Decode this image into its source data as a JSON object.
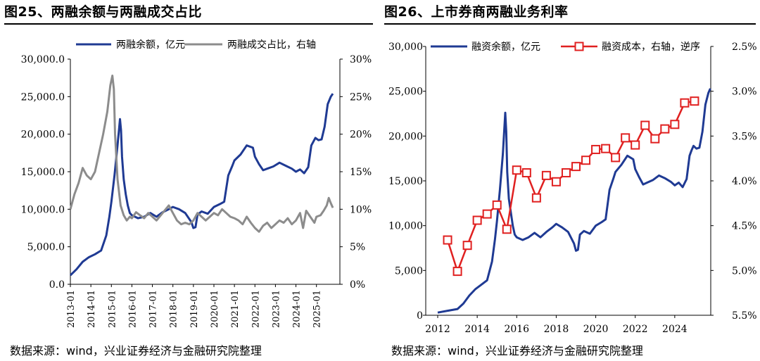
{
  "chart_data": [
    {
      "type": "line",
      "title": "图25、两融余额与两融成交占比",
      "source": "数据来源：wind，兴业证券经济与金融研究院整理",
      "x_tick_labels": [
        "2013-01",
        "2014-01",
        "2015-01",
        "2016-01",
        "2017-01",
        "2018-01",
        "2019-01",
        "2020-01",
        "2021-01",
        "2022-01",
        "2023-01",
        "2024-01",
        "2025-01"
      ],
      "y_left_ticks": [
        "0.0",
        "5,000.0",
        "10,000.0",
        "15,000.0",
        "20,000.0",
        "25,000.0",
        "30,000.0"
      ],
      "y_left_range": [
        0,
        30000
      ],
      "y_right_ticks": [
        "0%",
        "5%",
        "10%",
        "15%",
        "20%",
        "25%",
        "30%"
      ],
      "y_right_range": [
        0,
        30
      ],
      "series": [
        {
          "name": "两融余额，亿元",
          "axis": "left",
          "color": "#1f3a93",
          "x": [
            2013.0,
            2013.3,
            2013.6,
            2013.9,
            2014.2,
            2014.5,
            2014.75,
            2014.9,
            2015.0,
            2015.15,
            2015.3,
            2015.42,
            2015.47,
            2015.52,
            2015.6,
            2015.7,
            2015.8,
            2015.9,
            2016.0,
            2016.3,
            2016.6,
            2016.9,
            2017.2,
            2017.5,
            2017.8,
            2018.0,
            2018.3,
            2018.6,
            2018.9,
            2019.0,
            2019.1,
            2019.2,
            2019.4,
            2019.7,
            2020.0,
            2020.3,
            2020.5,
            2020.7,
            2020.9,
            2021.0,
            2021.3,
            2021.6,
            2021.9,
            2022.0,
            2022.2,
            2022.4,
            2022.6,
            2022.9,
            2023.2,
            2023.5,
            2023.8,
            2024.0,
            2024.2,
            2024.4,
            2024.6,
            2024.75,
            2024.85,
            2024.95,
            2025.1,
            2025.25,
            2025.4,
            2025.55,
            2025.7,
            2025.8
          ],
          "values": [
            1200,
            2000,
            3000,
            3600,
            4000,
            4500,
            6500,
            9000,
            11000,
            14500,
            18500,
            22000,
            20500,
            17000,
            14000,
            12000,
            10500,
            9500,
            9200,
            8800,
            9000,
            9500,
            9000,
            9600,
            10000,
            10300,
            10000,
            9500,
            8300,
            7500,
            7600,
            9300,
            9700,
            9400,
            10300,
            10700,
            11000,
            14500,
            15800,
            16500,
            17300,
            18500,
            18200,
            17000,
            16000,
            15200,
            15400,
            15700,
            16200,
            15800,
            15400,
            15000,
            15300,
            14800,
            15600,
            18500,
            19000,
            19500,
            19200,
            19300,
            21000,
            24000,
            25000,
            25400
          ]
        },
        {
          "name": "两融成交占比，右轴",
          "axis": "right",
          "color": "#8c8c8c",
          "x": [
            2013.0,
            2013.2,
            2013.4,
            2013.6,
            2013.8,
            2014.0,
            2014.2,
            2014.4,
            2014.6,
            2014.8,
            2014.95,
            2015.05,
            2015.12,
            2015.18,
            2015.3,
            2015.45,
            2015.6,
            2015.75,
            2015.9,
            2016.0,
            2016.2,
            2016.4,
            2016.6,
            2016.8,
            2017.0,
            2017.2,
            2017.5,
            2017.8,
            2018.0,
            2018.2,
            2018.4,
            2018.6,
            2018.8,
            2019.0,
            2019.2,
            2019.4,
            2019.6,
            2019.8,
            2020.0,
            2020.2,
            2020.4,
            2020.6,
            2020.8,
            2021.0,
            2021.2,
            2021.4,
            2021.6,
            2021.8,
            2022.0,
            2022.2,
            2022.4,
            2022.6,
            2022.8,
            2023.0,
            2023.2,
            2023.4,
            2023.6,
            2023.8,
            2024.0,
            2024.2,
            2024.35,
            2024.5,
            2024.7,
            2024.9,
            2025.0,
            2025.2,
            2025.35,
            2025.5,
            2025.6,
            2025.7,
            2025.8
          ],
          "values": [
            10.0,
            12.0,
            13.5,
            15.5,
            14.5,
            14.0,
            15.0,
            17.5,
            20.0,
            23.0,
            26.5,
            27.8,
            26.0,
            20.0,
            14.0,
            10.5,
            9.2,
            8.5,
            9.0,
            8.8,
            9.6,
            9.2,
            8.8,
            9.5,
            9.0,
            8.5,
            9.5,
            10.5,
            9.5,
            8.5,
            8.0,
            8.2,
            8.0,
            8.5,
            9.5,
            9.0,
            8.5,
            9.0,
            9.5,
            9.2,
            10.0,
            9.5,
            9.0,
            8.8,
            8.5,
            8.0,
            9.0,
            8.2,
            7.5,
            7.0,
            7.8,
            8.2,
            7.5,
            8.0,
            8.5,
            8.2,
            8.8,
            8.0,
            8.5,
            9.5,
            7.5,
            9.8,
            9.0,
            8.2,
            9.0,
            9.2,
            9.8,
            10.5,
            11.5,
            10.8,
            10.2
          ]
        }
      ]
    },
    {
      "type": "line",
      "title": "图26、上市券商两融业务利率",
      "source": "数据来源：wind，兴业证券经济与金融研究院整理",
      "x_tick_labels": [
        "2012",
        "2014",
        "2016",
        "2018",
        "2020",
        "2022",
        "2024"
      ],
      "x_range": [
        2012,
        2026
      ],
      "y_left_ticks": [
        "0",
        "5,000",
        "10,000",
        "15,000",
        "20,000",
        "25,000",
        "30,000"
      ],
      "y_left_range": [
        0,
        30000
      ],
      "y_right_ticks": [
        "2.5%",
        "3.0%",
        "3.5%",
        "4.0%",
        "4.5%",
        "5.0%",
        "5.5%"
      ],
      "y_right_range": [
        2.5,
        5.5
      ],
      "y_right_inverted": true,
      "series": [
        {
          "name": "融资余额，亿元",
          "axis": "left",
          "color": "#1f3a93",
          "x": [
            2012.0,
            2012.5,
            2013.0,
            2013.3,
            2013.6,
            2013.9,
            2014.2,
            2014.5,
            2014.75,
            2014.9,
            2015.0,
            2015.15,
            2015.3,
            2015.42,
            2015.47,
            2015.52,
            2015.6,
            2015.7,
            2015.8,
            2015.9,
            2016.0,
            2016.3,
            2016.6,
            2016.9,
            2017.2,
            2017.5,
            2017.8,
            2018.0,
            2018.3,
            2018.6,
            2018.9,
            2019.0,
            2019.1,
            2019.2,
            2019.4,
            2019.7,
            2020.0,
            2020.3,
            2020.5,
            2020.7,
            2020.9,
            2021.0,
            2021.3,
            2021.6,
            2021.9,
            2022.0,
            2022.2,
            2022.4,
            2022.6,
            2022.9,
            2023.2,
            2023.5,
            2023.8,
            2024.0,
            2024.2,
            2024.4,
            2024.6,
            2024.75,
            2024.85,
            2024.95,
            2025.1,
            2025.25,
            2025.4,
            2025.55,
            2025.7,
            2025.8
          ],
          "values": [
            300,
            500,
            700,
            1300,
            2200,
            2900,
            3400,
            3900,
            6000,
            8500,
            10500,
            14000,
            18000,
            22600,
            20500,
            16000,
            13000,
            11500,
            10000,
            9000,
            8700,
            8400,
            8700,
            9200,
            8700,
            9300,
            9800,
            10200,
            9800,
            9300,
            8000,
            7200,
            7300,
            9000,
            9400,
            9100,
            10000,
            10400,
            10700,
            14000,
            15300,
            16000,
            16800,
            17800,
            17400,
            16300,
            15400,
            14600,
            14800,
            15100,
            15600,
            15300,
            14900,
            14500,
            14800,
            14300,
            15200,
            17800,
            18400,
            18900,
            18600,
            18700,
            20500,
            23500,
            24800,
            25300
          ]
        },
        {
          "name": "融资成本，右轴，逆序",
          "axis": "right",
          "color": "#e02020",
          "x": [
            2012.5,
            2013.0,
            2013.5,
            2014.0,
            2014.5,
            2015.0,
            2015.5,
            2016.0,
            2016.5,
            2017.0,
            2017.5,
            2018.0,
            2018.5,
            2019.0,
            2019.5,
            2020.0,
            2020.5,
            2021.0,
            2021.5,
            2022.0,
            2022.5,
            2023.0,
            2023.5,
            2024.0,
            2024.5,
            2025.0
          ],
          "values": [
            4.66,
            5.01,
            4.72,
            4.44,
            4.37,
            4.27,
            4.54,
            3.88,
            3.91,
            4.19,
            3.94,
            4.01,
            3.91,
            3.84,
            3.77,
            3.65,
            3.64,
            3.74,
            3.52,
            3.6,
            3.38,
            3.53,
            3.42,
            3.37,
            3.13,
            3.11
          ]
        }
      ]
    }
  ]
}
